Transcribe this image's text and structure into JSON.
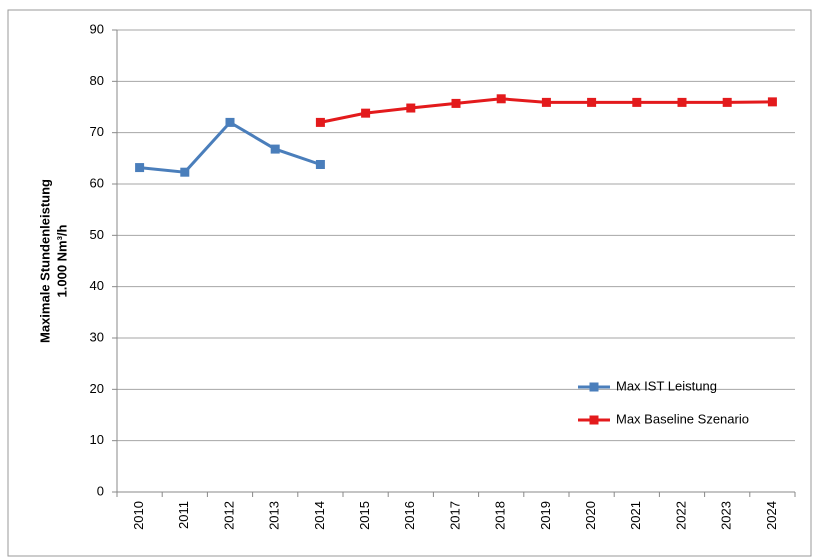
{
  "chart_data": {
    "type": "line",
    "ylabel": [
      "Maximale Stundenleistung",
      "1.000 Nm³/h"
    ],
    "categories": [
      "2010",
      "2011",
      "2012",
      "2013",
      "2014",
      "2015",
      "2016",
      "2017",
      "2018",
      "2019",
      "2020",
      "2021",
      "2022",
      "2023",
      "2024"
    ],
    "series": [
      {
        "name": "Max IST Leistung",
        "color": "#4a7ebb",
        "values": [
          63.2,
          62.3,
          72,
          66.8,
          63.8,
          null,
          null,
          null,
          null,
          null,
          null,
          null,
          null,
          null,
          null
        ]
      },
      {
        "name": "Max Baseline Szenario",
        "color": "#e31a1c",
        "values": [
          null,
          null,
          null,
          null,
          72,
          73.8,
          74.8,
          75.7,
          76.6,
          75.9,
          75.9,
          75.9,
          75.9,
          75.9,
          76
        ]
      }
    ],
    "ylim": [
      0,
      90
    ],
    "yticks": [
      0,
      10,
      20,
      30,
      40,
      50,
      60,
      70,
      80,
      90
    ],
    "grid": true,
    "legend": "bottom-right"
  }
}
